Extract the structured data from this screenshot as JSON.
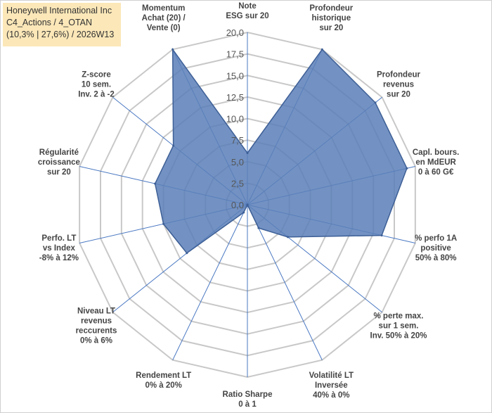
{
  "title_box": {
    "line1": "Honeywell International Inc",
    "line2": "C4_Actions / 4_OTAN",
    "line3": "(10,3% | 27,6%) / 2026W13"
  },
  "colors": {
    "fill": "#5a7fb8",
    "stroke": "#3d5f96",
    "grid": "#c8c8c8",
    "spoke": "#4a78c2",
    "title_bg": "#fbe7b8"
  },
  "chart_data": {
    "type": "radar",
    "rmin": 0,
    "rmax": 20,
    "ticks": [
      "0,0",
      "2,5",
      "5,0",
      "7,5",
      "10,0",
      "12,5",
      "15,0",
      "17,5",
      "20,0"
    ],
    "axes": [
      {
        "label": [
          "Note",
          "ESG sur 20"
        ],
        "value": 6.0
      },
      {
        "label": [
          "Profondeur",
          "historique",
          "sur 20"
        ],
        "value": 20.0
      },
      {
        "label": [
          "Profondeur",
          "revenus",
          "sur 20"
        ],
        "value": 19.0
      },
      {
        "label": [
          "Capl. bours.",
          "en MdEUR",
          "0 à 60 G€"
        ],
        "value": 19.0
      },
      {
        "label": [
          "% perfo 1A",
          "positive",
          "50% à 80%"
        ],
        "value": 16.0
      },
      {
        "label": [
          "% perte max.",
          "sur 1 sem.",
          "Inv. 50% à 20%"
        ],
        "value": 6.0
      },
      {
        "label": [
          "Volatilité LT",
          "Inversée",
          "40% à 0%"
        ],
        "value": 3.0
      },
      {
        "label": [
          "Ratio Sharpe",
          "0 à 1"
        ],
        "value": 0.0
      },
      {
        "label": [
          "Rendement LT",
          "0% à 20%"
        ],
        "value": 1.0
      },
      {
        "label": [
          "Niveau LT",
          "revenus",
          "reccurents",
          "0% à 6%"
        ],
        "value": 9.0
      },
      {
        "label": [
          "Perfo. LT",
          "vs Index",
          "-8% à 12%"
        ],
        "value": 10.0
      },
      {
        "label": [
          "Régularité",
          "croissance",
          "sur 20"
        ],
        "value": 11.0
      },
      {
        "label": [
          "Z-score",
          "10 sem.",
          "Inv. 2 à -2"
        ],
        "value": 11.0
      },
      {
        "label": [
          "Momentum",
          "Achat (20) /",
          "Vente (0)"
        ],
        "value": 20.0
      }
    ]
  }
}
